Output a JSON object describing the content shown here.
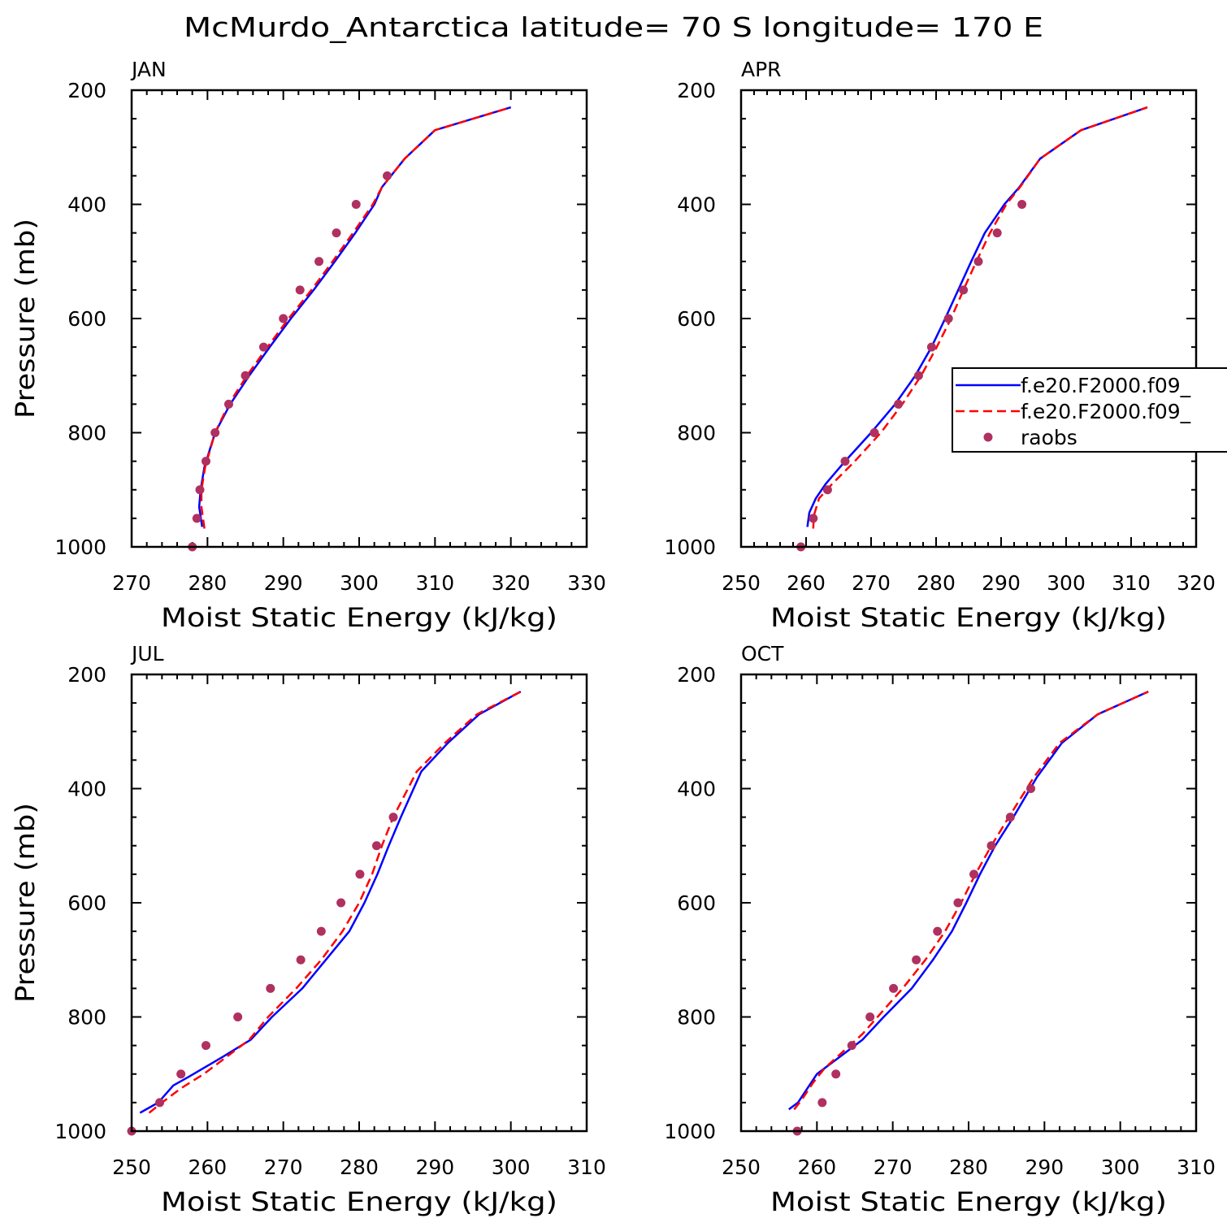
{
  "figure_title": "McMurdo_Antarctica  latitude= 70 S longitude= 170 E",
  "colors": {
    "model_a": "#0000ff",
    "model_b": "#ff0000",
    "raobs": "#b03060"
  },
  "legend": {
    "entries": [
      {
        "label": "f.e20.F2000.f09_",
        "style": "solid",
        "color": "#0000ff"
      },
      {
        "label": "f.e20.F2000.f09_",
        "style": "dashed",
        "color": "#ff0000"
      },
      {
        "label": "raobs",
        "style": "dot",
        "color": "#b03060"
      }
    ]
  },
  "chart_data": [
    {
      "type": "line",
      "panel_label": "JAN",
      "xlabel": "Moist Static Energy (kJ/kg)",
      "ylabel": "Pressure (mb)",
      "xlim": [
        270,
        330
      ],
      "ylim": [
        1000,
        200
      ],
      "x_ticks": [
        270,
        280,
        290,
        300,
        310,
        320,
        330
      ],
      "y_ticks": [
        200,
        400,
        600,
        800,
        1000
      ],
      "legend": false,
      "series": [
        {
          "style": "solid",
          "color": "#0000ff",
          "points": [
            [
              279.3,
              965
            ],
            [
              278.9,
              930
            ],
            [
              279.1,
              900
            ],
            [
              279.6,
              860
            ],
            [
              281.0,
              800
            ],
            [
              283.0,
              750
            ],
            [
              285.5,
              700
            ],
            [
              288.2,
              650
            ],
            [
              291.0,
              600
            ],
            [
              294.0,
              550
            ],
            [
              296.8,
              500
            ],
            [
              299.5,
              450
            ],
            [
              302.0,
              400
            ],
            [
              303.0,
              370
            ],
            [
              306.0,
              320
            ],
            [
              310.0,
              270
            ],
            [
              320.0,
              230
            ]
          ]
        },
        {
          "style": "dashed",
          "color": "#ff0000",
          "points": [
            [
              279.6,
              968
            ],
            [
              279.2,
              930
            ],
            [
              279.2,
              900
            ],
            [
              279.7,
              860
            ],
            [
              281.0,
              800
            ],
            [
              282.8,
              750
            ],
            [
              285.2,
              700
            ],
            [
              287.9,
              650
            ],
            [
              290.7,
              600
            ],
            [
              293.7,
              550
            ],
            [
              296.5,
              500
            ],
            [
              299.2,
              450
            ],
            [
              301.8,
              400
            ],
            [
              303.0,
              370
            ],
            [
              306.0,
              320
            ],
            [
              310.0,
              270
            ],
            [
              320.0,
              230
            ]
          ]
        },
        {
          "style": "dots",
          "color": "#b03060",
          "points": [
            [
              278.0,
              1000
            ],
            [
              278.6,
              950
            ],
            [
              279.0,
              900
            ],
            [
              279.8,
              850
            ],
            [
              281.0,
              800
            ],
            [
              282.8,
              750
            ],
            [
              285.0,
              700
            ],
            [
              287.4,
              650
            ],
            [
              290.0,
              600
            ],
            [
              292.2,
              550
            ],
            [
              294.7,
              500
            ],
            [
              297.0,
              450
            ],
            [
              299.6,
              400
            ],
            [
              303.7,
              350
            ]
          ]
        }
      ]
    },
    {
      "type": "line",
      "panel_label": "APR",
      "xlabel": "Moist Static Energy (kJ/kg)",
      "ylabel": "",
      "xlim": [
        250,
        320
      ],
      "ylim": [
        1000,
        200
      ],
      "x_ticks": [
        250,
        260,
        270,
        280,
        290,
        300,
        310,
        320
      ],
      "y_ticks": [
        200,
        400,
        600,
        800,
        1000
      ],
      "legend": true,
      "series": [
        {
          "style": "solid",
          "color": "#0000ff",
          "points": [
            [
              260.2,
              965
            ],
            [
              260.5,
              940
            ],
            [
              261.5,
              915
            ],
            [
              263.0,
              890
            ],
            [
              266.0,
              850
            ],
            [
              270.0,
              800
            ],
            [
              273.7,
              750
            ],
            [
              276.8,
              700
            ],
            [
              279.3,
              650
            ],
            [
              281.4,
              600
            ],
            [
              283.4,
              550
            ],
            [
              285.4,
              500
            ],
            [
              287.5,
              450
            ],
            [
              290.5,
              400
            ],
            [
              292.8,
              370
            ],
            [
              296.0,
              320
            ],
            [
              302.3,
              270
            ],
            [
              312.5,
              230
            ]
          ]
        },
        {
          "style": "dashed",
          "color": "#ff0000",
          "points": [
            [
              261.1,
              968
            ],
            [
              261.2,
              945
            ],
            [
              262.0,
              915
            ],
            [
              264.0,
              890
            ],
            [
              267.5,
              850
            ],
            [
              271.5,
              800
            ],
            [
              274.8,
              750
            ],
            [
              277.7,
              700
            ],
            [
              280.1,
              650
            ],
            [
              282.3,
              600
            ],
            [
              284.2,
              550
            ],
            [
              286.2,
              500
            ],
            [
              288.3,
              450
            ],
            [
              290.8,
              400
            ],
            [
              292.9,
              370
            ],
            [
              296.0,
              320
            ],
            [
              302.3,
              270
            ],
            [
              312.5,
              230
            ]
          ]
        },
        {
          "style": "dots",
          "color": "#b03060",
          "points": [
            [
              259.2,
              1000
            ],
            [
              261.1,
              950
            ],
            [
              263.3,
              900
            ],
            [
              266.0,
              850
            ],
            [
              270.5,
              800
            ],
            [
              274.2,
              750
            ],
            [
              277.3,
              700
            ],
            [
              279.3,
              650
            ],
            [
              281.9,
              600
            ],
            [
              284.2,
              550
            ],
            [
              286.5,
              500
            ],
            [
              289.4,
              450
            ],
            [
              293.2,
              400
            ]
          ]
        }
      ]
    },
    {
      "type": "line",
      "panel_label": "JUL",
      "xlabel": "Moist Static Energy (kJ/kg)",
      "ylabel": "Pressure (mb)",
      "xlim": [
        250,
        310
      ],
      "ylim": [
        1000,
        200
      ],
      "x_ticks": [
        250,
        260,
        270,
        280,
        290,
        300,
        310
      ],
      "y_ticks": [
        200,
        400,
        600,
        800,
        1000
      ],
      "legend": false,
      "series": [
        {
          "style": "solid",
          "color": "#0000ff",
          "points": [
            [
              251.1,
              968
            ],
            [
              253.5,
              950
            ],
            [
              255.5,
              920
            ],
            [
              257.5,
              905
            ],
            [
              262.0,
              870
            ],
            [
              265.7,
              840
            ],
            [
              268.5,
              800
            ],
            [
              272.5,
              750
            ],
            [
              275.6,
              700
            ],
            [
              278.7,
              650
            ],
            [
              280.7,
              600
            ],
            [
              282.4,
              550
            ],
            [
              283.9,
              500
            ],
            [
              285.5,
              450
            ],
            [
              288.2,
              370
            ],
            [
              291.7,
              320
            ],
            [
              295.8,
              270
            ],
            [
              301.3,
              230
            ]
          ]
        },
        {
          "style": "dashed",
          "color": "#ff0000",
          "points": [
            [
              252.3,
              968
            ],
            [
              254.0,
              950
            ],
            [
              256.5,
              925
            ],
            [
              259.5,
              900
            ],
            [
              262.5,
              870
            ],
            [
              265.5,
              840
            ],
            [
              268.0,
              800
            ],
            [
              271.7,
              750
            ],
            [
              275.0,
              700
            ],
            [
              277.8,
              650
            ],
            [
              280.0,
              600
            ],
            [
              281.7,
              550
            ],
            [
              283.0,
              500
            ],
            [
              284.5,
              450
            ],
            [
              287.6,
              370
            ],
            [
              291.3,
              320
            ],
            [
              295.5,
              270
            ],
            [
              301.3,
              230
            ]
          ]
        },
        {
          "style": "dots",
          "color": "#b03060",
          "points": [
            [
              250.0,
              1000
            ],
            [
              253.7,
              950
            ],
            [
              256.5,
              900
            ],
            [
              259.8,
              850
            ],
            [
              264.0,
              800
            ],
            [
              268.3,
              750
            ],
            [
              272.3,
              700
            ],
            [
              275.0,
              650
            ],
            [
              277.6,
              600
            ],
            [
              280.1,
              550
            ],
            [
              282.3,
              500
            ],
            [
              284.5,
              450
            ]
          ]
        }
      ]
    },
    {
      "type": "line",
      "panel_label": "OCT",
      "xlabel": "Moist Static Energy (kJ/kg)",
      "ylabel": "",
      "xlim": [
        250,
        310
      ],
      "ylim": [
        1000,
        200
      ],
      "x_ticks": [
        250,
        260,
        270,
        280,
        290,
        300,
        310
      ],
      "y_ticks": [
        200,
        400,
        600,
        800,
        1000
      ],
      "legend": false,
      "series": [
        {
          "style": "solid",
          "color": "#0000ff",
          "points": [
            [
              256.3,
              962
            ],
            [
              257.5,
              950
            ],
            [
              259.0,
              920
            ],
            [
              260.0,
              900
            ],
            [
              263.0,
              870
            ],
            [
              266.0,
              840
            ],
            [
              268.8,
              800
            ],
            [
              272.5,
              750
            ],
            [
              275.3,
              700
            ],
            [
              277.8,
              650
            ],
            [
              279.7,
              600
            ],
            [
              281.5,
              550
            ],
            [
              283.5,
              500
            ],
            [
              285.9,
              450
            ],
            [
              289.0,
              380
            ],
            [
              292.3,
              320
            ],
            [
              297.0,
              270
            ],
            [
              303.7,
              230
            ]
          ]
        },
        {
          "style": "dashed",
          "color": "#ff0000",
          "points": [
            [
              257.0,
              962
            ],
            [
              258.0,
              945
            ],
            [
              259.5,
              915
            ],
            [
              261.0,
              890
            ],
            [
              263.5,
              860
            ],
            [
              266.0,
              830
            ],
            [
              268.0,
              800
            ],
            [
              271.3,
              750
            ],
            [
              274.3,
              700
            ],
            [
              276.9,
              650
            ],
            [
              279.0,
              600
            ],
            [
              280.9,
              550
            ],
            [
              283.0,
              500
            ],
            [
              285.3,
              450
            ],
            [
              288.6,
              380
            ],
            [
              292.0,
              320
            ],
            [
              297.0,
              270
            ],
            [
              303.7,
              230
            ]
          ]
        },
        {
          "style": "dots",
          "color": "#b03060",
          "points": [
            [
              257.4,
              1000
            ],
            [
              260.7,
              950
            ],
            [
              262.5,
              900
            ],
            [
              264.6,
              850
            ],
            [
              267.0,
              800
            ],
            [
              270.1,
              750
            ],
            [
              273.1,
              700
            ],
            [
              275.9,
              650
            ],
            [
              278.6,
              600
            ],
            [
              280.7,
              550
            ],
            [
              283.0,
              500
            ],
            [
              285.5,
              450
            ],
            [
              288.2,
              400
            ]
          ]
        }
      ]
    }
  ]
}
